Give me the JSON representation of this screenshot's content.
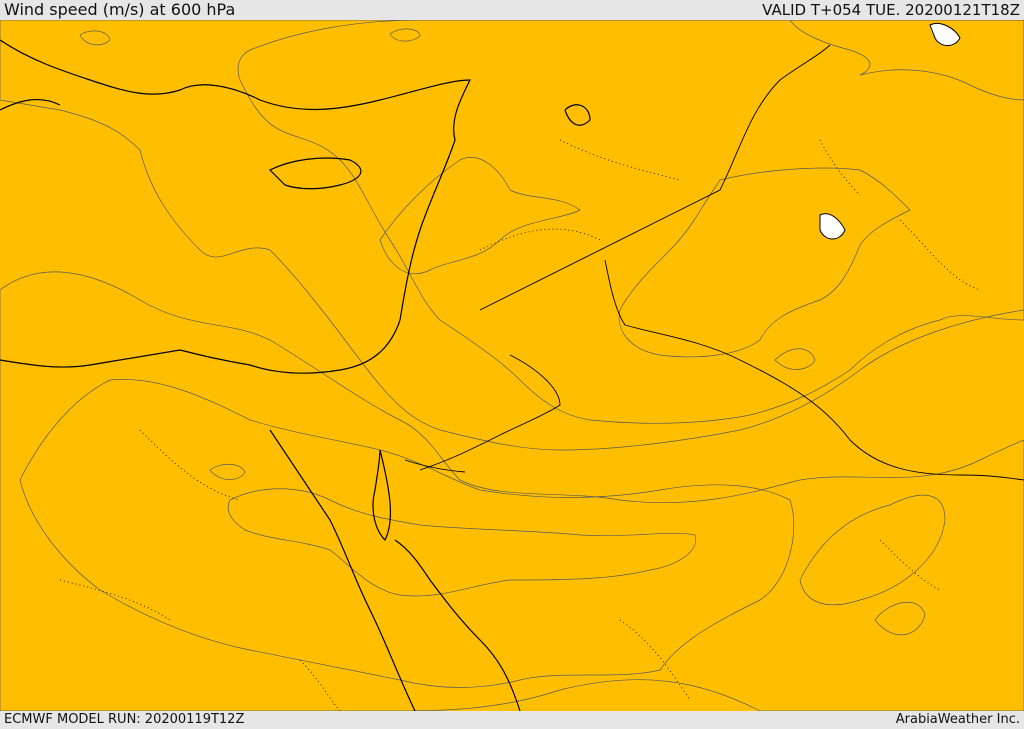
{
  "header": {
    "title": "Wind speed (m/s) at 600 hPa",
    "valid": "VALID T+054 TUE. 20200121T18Z"
  },
  "footer": {
    "model_run": "ECMWF MODEL RUN: 20200119T12Z",
    "credit": "ArabiaWeather Inc."
  },
  "map": {
    "field": "wind-speed-shading",
    "colors": {
      "weakest": "#ffdea4",
      "light": "#ffff00",
      "gold": "#ffd700",
      "amber": "#ffbf00",
      "orange": "#ff9f00",
      "dark_orange": "#ff8200",
      "strongest": "#ff5f00"
    }
  }
}
